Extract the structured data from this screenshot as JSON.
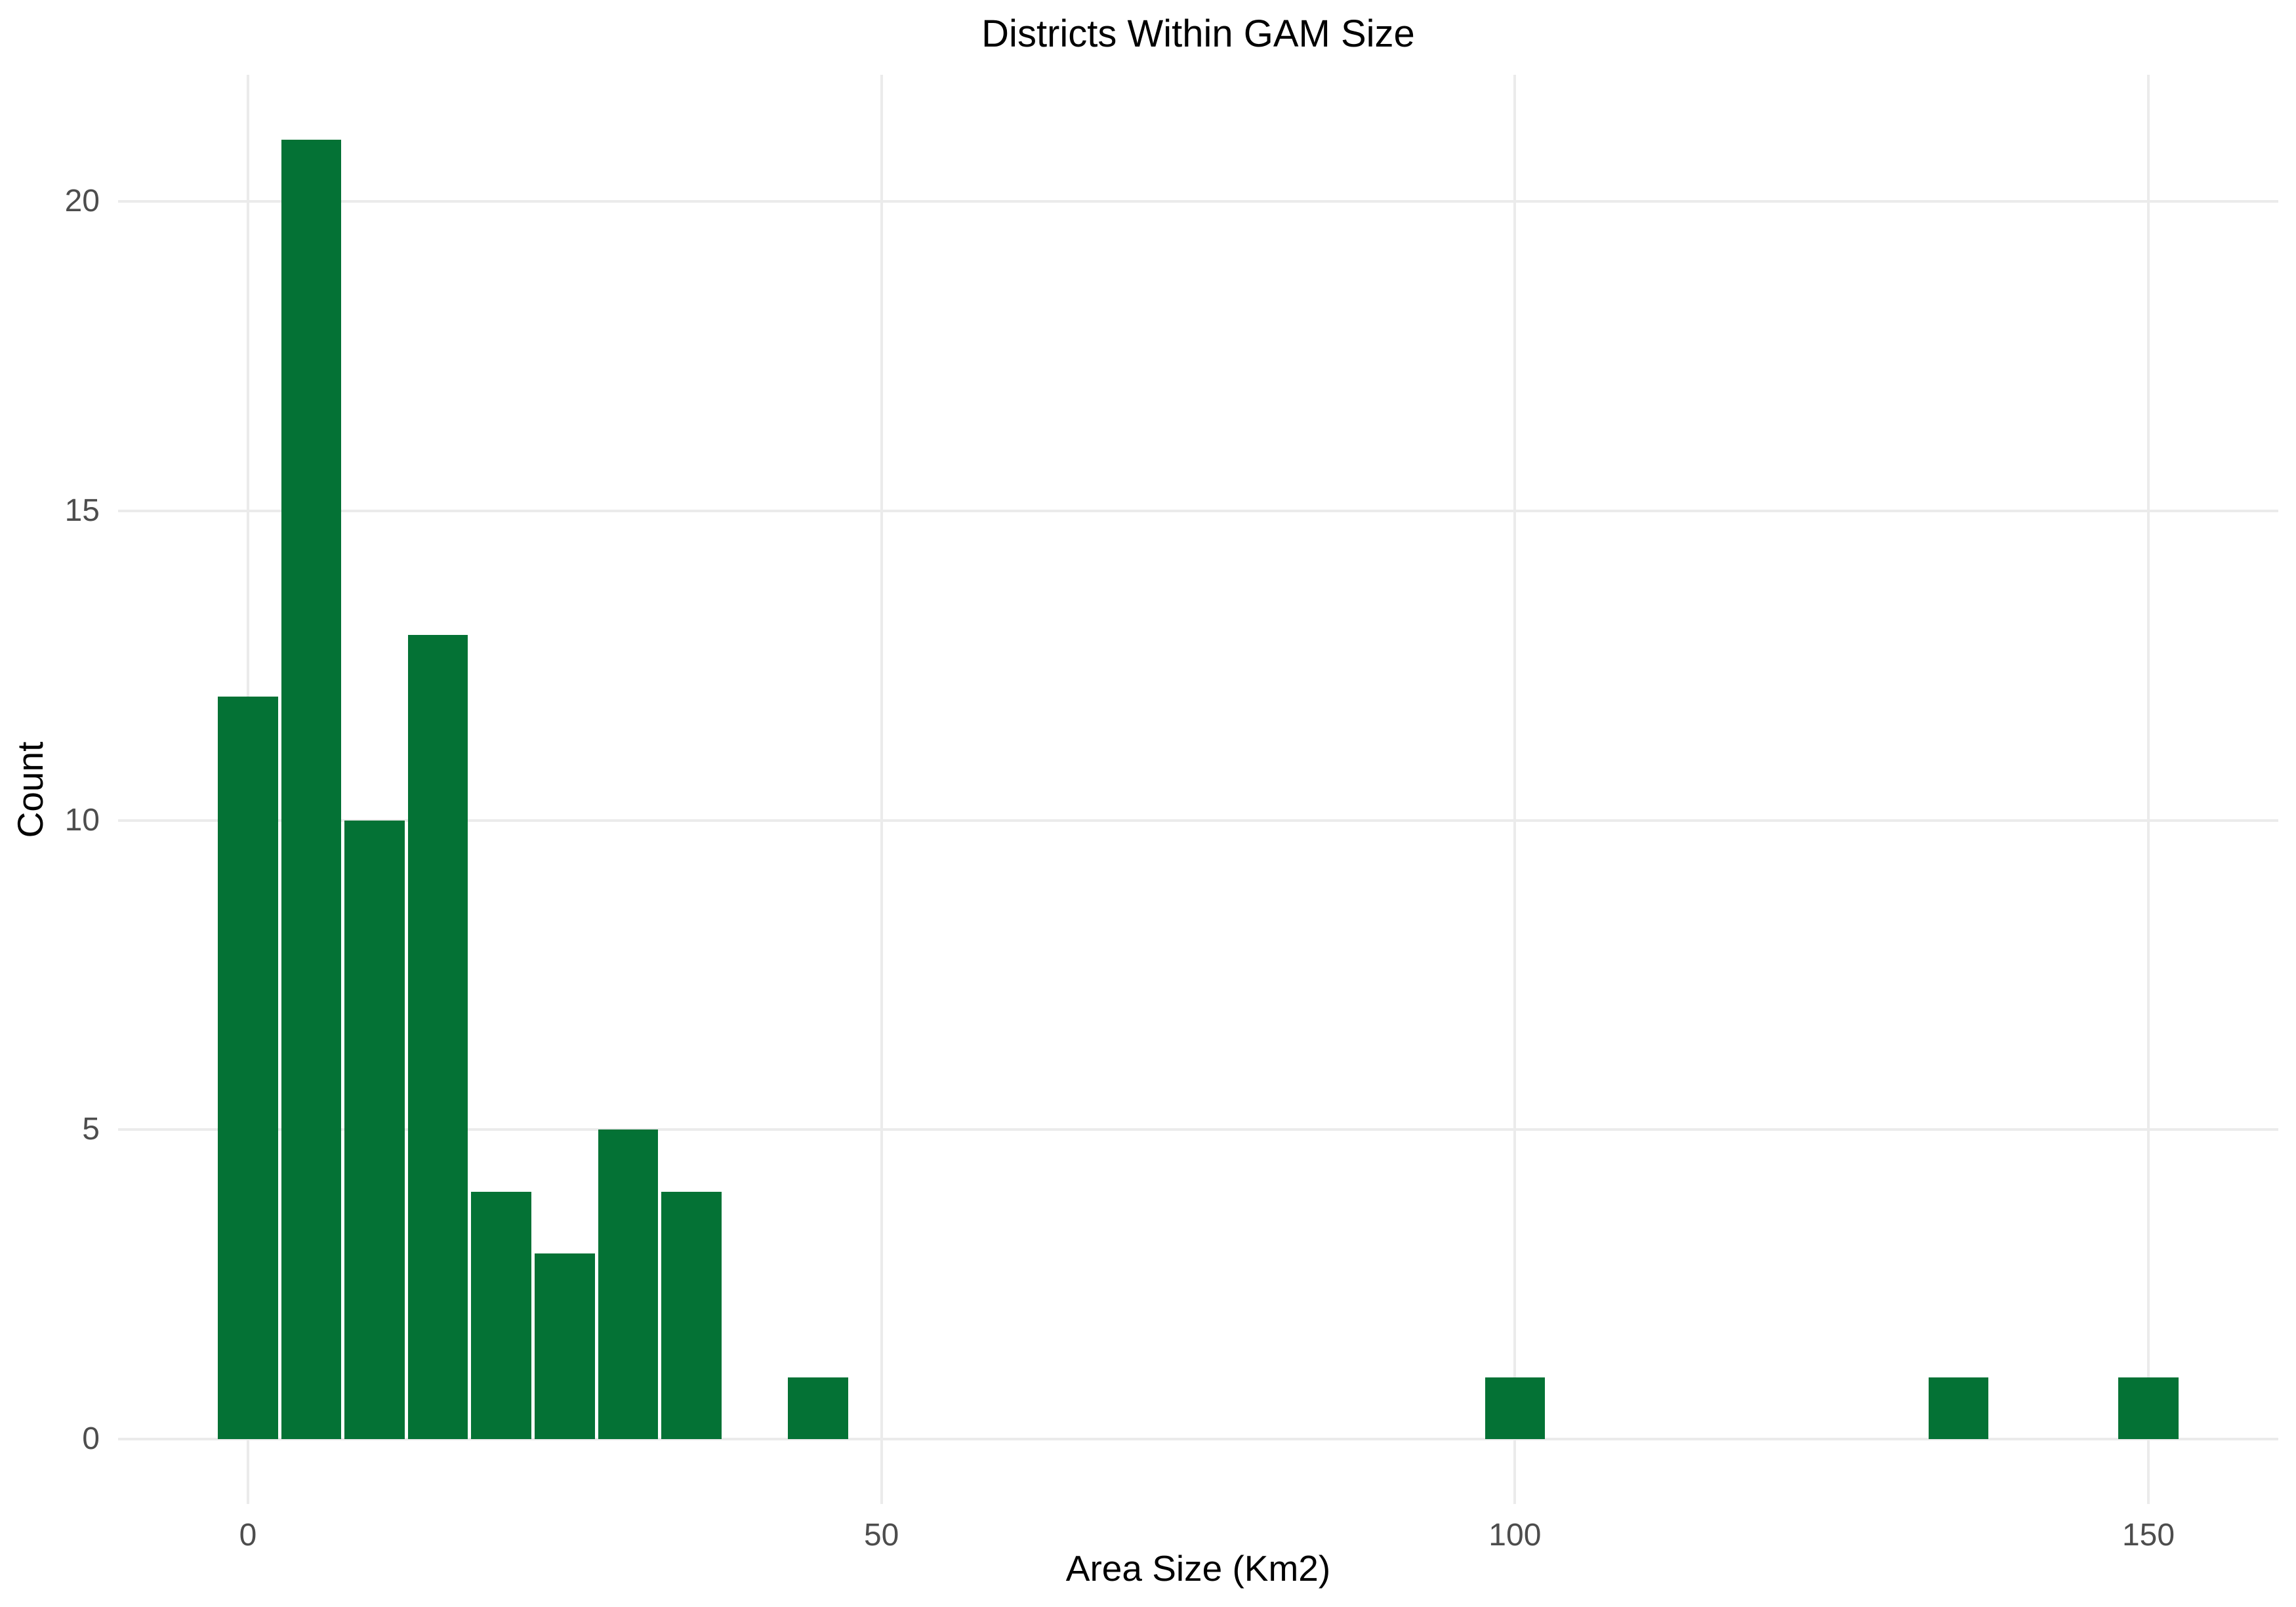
{
  "title": "Districts Within GAM Size",
  "chart_data": {
    "type": "bar",
    "subtype": "histogram",
    "title": "Districts Within GAM Size",
    "xlabel": "Area Size (Km2)",
    "ylabel": "Count",
    "bin_width": 5,
    "bins": [
      {
        "center": 0,
        "count": 12
      },
      {
        "center": 5,
        "count": 21
      },
      {
        "center": 10,
        "count": 10
      },
      {
        "center": 15,
        "count": 13
      },
      {
        "center": 20,
        "count": 4
      },
      {
        "center": 25,
        "count": 3
      },
      {
        "center": 30,
        "count": 5
      },
      {
        "center": 35,
        "count": 4
      },
      {
        "center": 45,
        "count": 1
      },
      {
        "center": 100,
        "count": 1
      },
      {
        "center": 135,
        "count": 1
      },
      {
        "center": 150,
        "count": 1
      }
    ],
    "x_ticks": [
      0,
      50,
      100,
      150
    ],
    "y_ticks": [
      0,
      5,
      10,
      15,
      20
    ],
    "xlim": [
      -10.25,
      160.25
    ],
    "ylim": [
      -1.05,
      22.05
    ],
    "grid": "major-only",
    "legend_position": "none"
  },
  "colors": {
    "bar": "#047235",
    "grid": "#ebebeb",
    "tick_text": "#4d4d4d",
    "title_text": "#000000",
    "background": "#ffffff"
  }
}
